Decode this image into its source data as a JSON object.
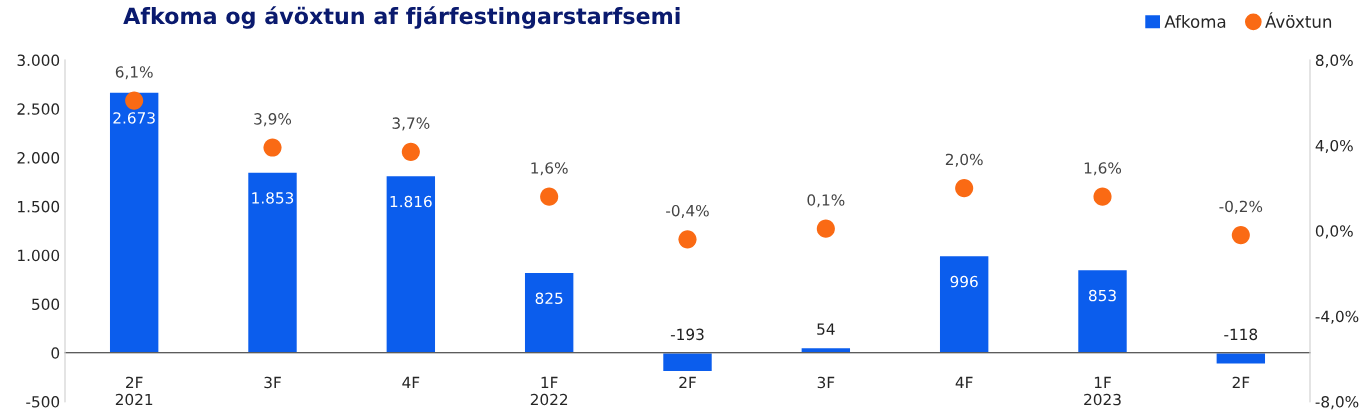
{
  "chart_data": {
    "type": "bar",
    "title": "Afkoma og ávöxtun af fjárfestingarstarfsemi",
    "categories": [
      "2F\n2021",
      "3F",
      "4F",
      "1F\n2022",
      "2F",
      "3F",
      "4F",
      "1F\n2023",
      "2F"
    ],
    "series": [
      {
        "name": "Afkoma",
        "color": "#0b5ded",
        "values": [
          2673,
          1853,
          1816,
          825,
          -193,
          54,
          996,
          853,
          -118
        ],
        "value_labels": [
          "2.673",
          "1.853",
          "1.816",
          "825",
          "-193",
          "54",
          "996",
          "853",
          "-118"
        ]
      },
      {
        "name": "Ávöxtun",
        "type": "scatter",
        "axis": "y2",
        "marker": "circle",
        "color": "#fa6a14",
        "values": [
          6.1,
          3.9,
          3.7,
          1.6,
          -0.4,
          0.1,
          2.0,
          1.6,
          -0.2
        ],
        "value_labels": [
          "6,1%",
          "3,9%",
          "3,7%",
          "1,6%",
          "-0,4%",
          "0,1%",
          "2,0%",
          "1,6%",
          "-0,2%"
        ]
      }
    ],
    "ylim": [
      -500,
      3000
    ],
    "yticks": [
      {
        "value": -500,
        "label": "-500"
      },
      {
        "value": 0,
        "label": "0"
      },
      {
        "value": 500,
        "label": "500"
      },
      {
        "value": 1000,
        "label": "1.000"
      },
      {
        "value": 1500,
        "label": "1.500"
      },
      {
        "value": 2000,
        "label": "2.000"
      },
      {
        "value": 2500,
        "label": "2.500"
      },
      {
        "value": 3000,
        "label": "3.000"
      }
    ],
    "y2lim": [
      -8,
      8
    ],
    "y2ticks": [
      {
        "value": -8,
        "label": "-8,0%"
      },
      {
        "value": -4,
        "label": "-4,0%"
      },
      {
        "value": 0,
        "label": "0,0%"
      },
      {
        "value": 4,
        "label": "4,0%"
      },
      {
        "value": 8,
        "label": "8,0%"
      }
    ],
    "grid": false,
    "legend": "top right"
  }
}
